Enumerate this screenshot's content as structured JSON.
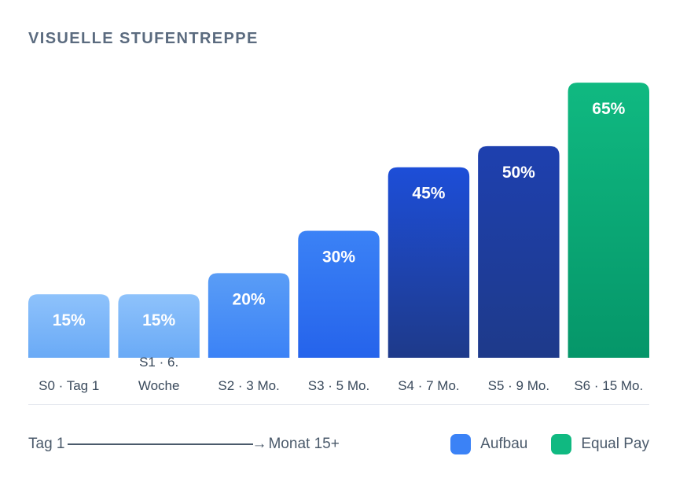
{
  "header": {
    "title": "VISUELLE STUFENTREPPE"
  },
  "chart_data": {
    "type": "bar",
    "title": "VISUELLE STUFENTREPPE",
    "categories": [
      "S0 · Tag 1",
      "S1 · 6. Woche",
      "S2 · 3 Mo.",
      "S3 · 5 Mo.",
      "S4 · 7 Mo.",
      "S5 · 9 Mo.",
      "S6 · 15 Mo."
    ],
    "values": [
      15,
      15,
      20,
      30,
      45,
      50,
      65
    ],
    "data_labels": [
      "15%",
      "15%",
      "20%",
      "30%",
      "45%",
      "50%",
      "65%"
    ],
    "series_group": [
      "Aufbau",
      "Aufbau",
      "Aufbau",
      "Aufbau",
      "Aufbau",
      "Aufbau",
      "Equal Pay"
    ],
    "ylim": [
      0,
      73
    ],
    "grid": false,
    "bar_colors": [
      [
        "#8ec2fb",
        "#6aaaf6"
      ],
      [
        "#8ec2fb",
        "#6aaaf6"
      ],
      [
        "#5a9df6",
        "#3b82f6"
      ],
      [
        "#3b82f6",
        "#2563eb"
      ],
      [
        "#1d4ed8",
        "#1e3a8a"
      ],
      [
        "#1e40af",
        "#1e3a8a"
      ],
      [
        "#10b981",
        "#059669"
      ]
    ]
  },
  "timeline": {
    "start": "Tag 1",
    "end": "Monat 15+"
  },
  "legend": [
    {
      "label": "Aufbau",
      "color": "#3b82f6"
    },
    {
      "label": "Equal Pay",
      "color": "#10b981"
    }
  ]
}
